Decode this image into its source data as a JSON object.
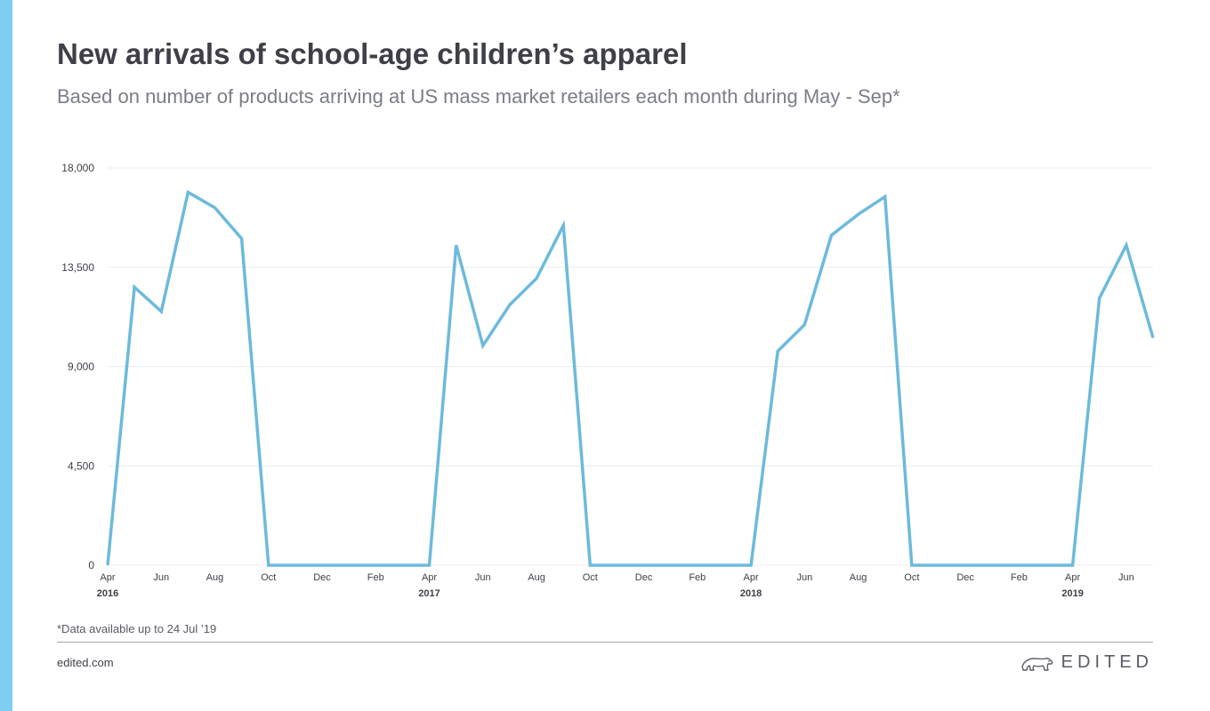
{
  "header": {
    "title": "New arrivals of school-age children’s apparel",
    "subtitle": "Based on number of products arriving at US mass market retailers each month during May - Sep*"
  },
  "footer": {
    "footnote": "*Data available up to 24 Jul ’19",
    "website": "edited.com",
    "brand": "EDITED"
  },
  "colors": {
    "accent_bar": "#7fcdf1",
    "line": "#6cbadc",
    "grid": "#ececec",
    "text": "#3e3f47"
  },
  "icons": {
    "brand_logo": "polar-bear-icon"
  },
  "chart_data": {
    "type": "line",
    "title": "New arrivals of school-age children’s apparel",
    "subtitle": "Based on number of products arriving at US mass market retailers each month during May - Sep*",
    "xlabel": "",
    "ylabel": "",
    "ylim": [
      0,
      18000
    ],
    "yticks": [
      0,
      4500,
      9000,
      13500,
      18000
    ],
    "ytick_labels": [
      "0",
      "4,500",
      "9,000",
      "13,500",
      "18,000"
    ],
    "grid": true,
    "x": [
      "Apr 2016",
      "May 2016",
      "Jun 2016",
      "Jul 2016",
      "Aug 2016",
      "Sep 2016",
      "Oct 2016",
      "Nov 2016",
      "Dec 2016",
      "Jan 2017",
      "Feb 2017",
      "Mar 2017",
      "Apr 2017",
      "May 2017",
      "Jun 2017",
      "Jul 2017",
      "Aug 2017",
      "Sep 2017",
      "Oct 2017",
      "Nov 2017",
      "Dec 2017",
      "Jan 2018",
      "Feb 2018",
      "Mar 2018",
      "Apr 2018",
      "May 2018",
      "Jun 2018",
      "Jul 2018",
      "Aug 2018",
      "Sep 2018",
      "Oct 2018",
      "Nov 2018",
      "Dec 2018",
      "Jan 2019",
      "Feb 2019",
      "Mar 2019",
      "Apr 2019",
      "May 2019",
      "Jun 2019",
      "Jul 2019"
    ],
    "xticks": [
      {
        "label": "Apr",
        "year": "2016"
      },
      {
        "label": "Jun",
        "year": ""
      },
      {
        "label": "Aug",
        "year": ""
      },
      {
        "label": "Oct",
        "year": ""
      },
      {
        "label": "Dec",
        "year": ""
      },
      {
        "label": "Feb",
        "year": ""
      },
      {
        "label": "Apr",
        "year": "2017"
      },
      {
        "label": "Jun",
        "year": ""
      },
      {
        "label": "Aug",
        "year": ""
      },
      {
        "label": "Oct",
        "year": ""
      },
      {
        "label": "Dec",
        "year": ""
      },
      {
        "label": "Feb",
        "year": ""
      },
      {
        "label": "Apr",
        "year": "2018"
      },
      {
        "label": "Jun",
        "year": ""
      },
      {
        "label": "Aug",
        "year": ""
      },
      {
        "label": "Oct",
        "year": ""
      },
      {
        "label": "Dec",
        "year": ""
      },
      {
        "label": "Feb",
        "year": ""
      },
      {
        "label": "Apr",
        "year": "2019"
      },
      {
        "label": "Jun",
        "year": ""
      }
    ],
    "series": [
      {
        "values": [
          0,
          12600,
          11500,
          16900,
          16200,
          14800,
          0,
          0,
          0,
          0,
          0,
          0,
          0,
          14500,
          9950,
          11800,
          13000,
          15400,
          0,
          0,
          0,
          0,
          0,
          0,
          0,
          9700,
          10900,
          14950,
          15900,
          16700,
          0,
          0,
          0,
          0,
          0,
          0,
          0,
          12100,
          14500,
          10300
        ]
      }
    ]
  }
}
